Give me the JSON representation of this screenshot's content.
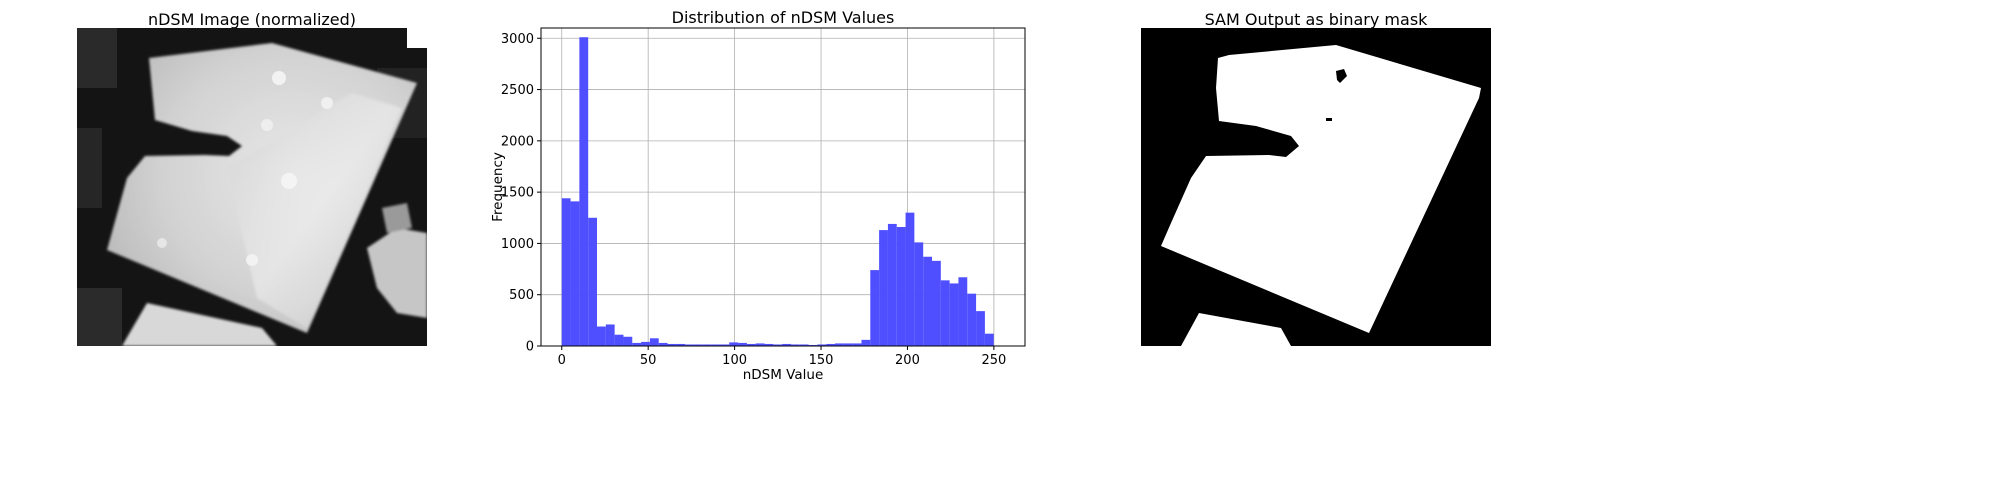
{
  "panels": {
    "left_title": "nDSM Image (normalized)",
    "right_title": "SAM Output as binary mask"
  },
  "chart_data": {
    "type": "bar",
    "title": "Distribution of nDSM Values",
    "xlabel": "nDSM Value",
    "ylabel": "Frequency",
    "xlim": [
      -12,
      268
    ],
    "ylim": [
      0,
      3100
    ],
    "xticks": [
      0,
      50,
      100,
      150,
      200,
      250
    ],
    "yticks": [
      0,
      500,
      1000,
      1500,
      2000,
      2500,
      3000
    ],
    "grid": true,
    "bar_color": "#4b4bff",
    "bin_width": 5.1,
    "bins_start": [
      0,
      5.1,
      10.2,
      15.3,
      20.4,
      25.5,
      30.6,
      35.7,
      40.8,
      45.9,
      51.0,
      56.1,
      61.2,
      66.3,
      71.4,
      76.5,
      81.6,
      86.7,
      91.8,
      96.9,
      102.0,
      107.1,
      112.2,
      117.3,
      122.4,
      127.5,
      132.6,
      137.7,
      142.8,
      147.9,
      153.0,
      158.1,
      163.2,
      168.3,
      173.4,
      178.5,
      183.6,
      188.7,
      193.8,
      198.9,
      204.0,
      209.1,
      214.2,
      219.3,
      224.4,
      229.5,
      234.6,
      239.7,
      244.8,
      249.9
    ],
    "values": [
      1440,
      1410,
      3010,
      1250,
      190,
      210,
      110,
      90,
      30,
      40,
      75,
      30,
      20,
      20,
      15,
      15,
      15,
      15,
      15,
      35,
      30,
      20,
      25,
      20,
      15,
      20,
      15,
      15,
      10,
      15,
      20,
      25,
      25,
      25,
      60,
      740,
      1130,
      1190,
      1160,
      1300,
      1010,
      870,
      830,
      640,
      610,
      670,
      510,
      340,
      120,
      0
    ]
  }
}
